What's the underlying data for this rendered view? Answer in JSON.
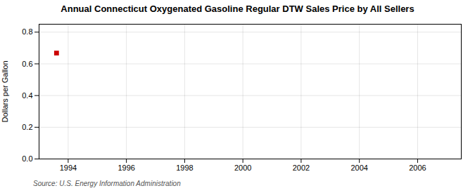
{
  "chart_data": {
    "type": "scatter",
    "title": "Annual Connecticut Oxygenated Gasoline Regular DTW Sales Price by All Sellers",
    "ylabel": "Dollars per Gallon",
    "annotations": [
      "Source: U.S. Energy Information Administration"
    ],
    "x": [
      1993.6
    ],
    "values": [
      0.668
    ],
    "color": "#cc0000",
    "marker": "square",
    "xlim": [
      1993.0,
      2007.5
    ],
    "ylim": [
      0.0,
      0.85
    ],
    "xticks": [
      1994,
      1996,
      1998,
      2000,
      2002,
      2004,
      2006
    ],
    "yticks": [
      {
        "value": 0.0,
        "label": "0.0"
      },
      0.2,
      0.4,
      0.6,
      0.8
    ],
    "grid": true
  }
}
